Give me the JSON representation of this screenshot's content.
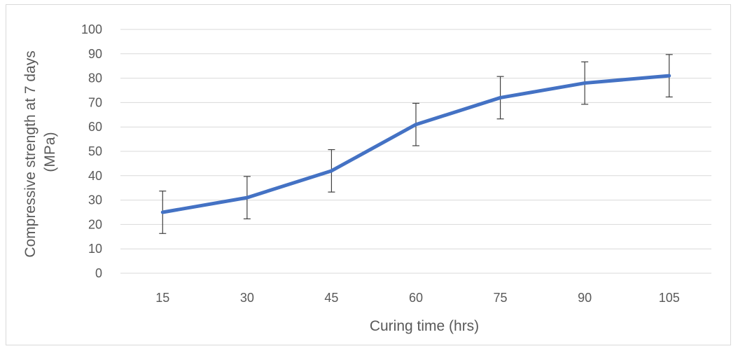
{
  "chart_data": {
    "type": "line",
    "title": "",
    "xlabel": "Curing time (hrs)",
    "ylabel_lines": [
      "Compressive strength at 7 days",
      "(MPa)"
    ],
    "categories": [
      "15",
      "30",
      "45",
      "60",
      "75",
      "90",
      "105"
    ],
    "series": [
      {
        "values": [
          25,
          31,
          42,
          61,
          72,
          78,
          81
        ],
        "error": [
          8.7,
          8.7,
          8.7,
          8.7,
          8.7,
          8.7,
          8.7
        ],
        "color": "#4472C4"
      }
    ],
    "ylim": [
      0,
      100
    ],
    "yticks": [
      0,
      10,
      20,
      30,
      40,
      50,
      60,
      70,
      80,
      90,
      100
    ],
    "grid": true,
    "legend": "none",
    "colors": {
      "gridline": "#d9d9d9",
      "text": "#595959",
      "errorbar": "#404040"
    }
  }
}
